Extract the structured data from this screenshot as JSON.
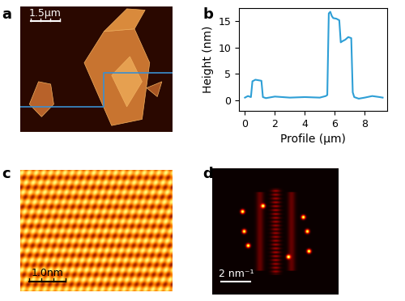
{
  "chart_data": {
    "type": "line",
    "x_label": "Profile (μm)",
    "y_label": "Height (nm)",
    "x": [
      0,
      0.2,
      0.4,
      0.5,
      0.7,
      0.9,
      1.1,
      1.2,
      1.4,
      2,
      3,
      4,
      5,
      5.4,
      5.5,
      5.6,
      5.7,
      5.8,
      5.9,
      6.1,
      6.3,
      6.4,
      6.5,
      6.7,
      6.9,
      7.1,
      7.2,
      7.3,
      7.6,
      8,
      8.5,
      9,
      9.2
    ],
    "values": [
      0.5,
      0.8,
      0.6,
      3.6,
      3.9,
      3.8,
      3.7,
      0.6,
      0.4,
      0.7,
      0.5,
      0.6,
      0.5,
      0.8,
      1,
      16.5,
      16.8,
      16,
      15.6,
      15.5,
      15.2,
      11,
      11.2,
      11.5,
      12,
      11.8,
      1.5,
      0.6,
      0.3,
      0.5,
      0.8,
      0.6,
      0.5
    ],
    "color": "#2e9fd6",
    "xlim": [
      -0.4,
      9.5
    ],
    "ylim": [
      -2,
      17.5
    ],
    "xticks": [
      0,
      2,
      4,
      6,
      8
    ],
    "yticks": [
      0,
      5,
      10,
      15
    ]
  },
  "panels": {
    "a": {
      "label": "a",
      "scale_bar": "1.5μm"
    },
    "b": {
      "label": "b"
    },
    "c": {
      "label": "c",
      "scale_bar": "1.0nm"
    },
    "d": {
      "label": "d",
      "scale_bar": "2 nm⁻¹"
    }
  }
}
